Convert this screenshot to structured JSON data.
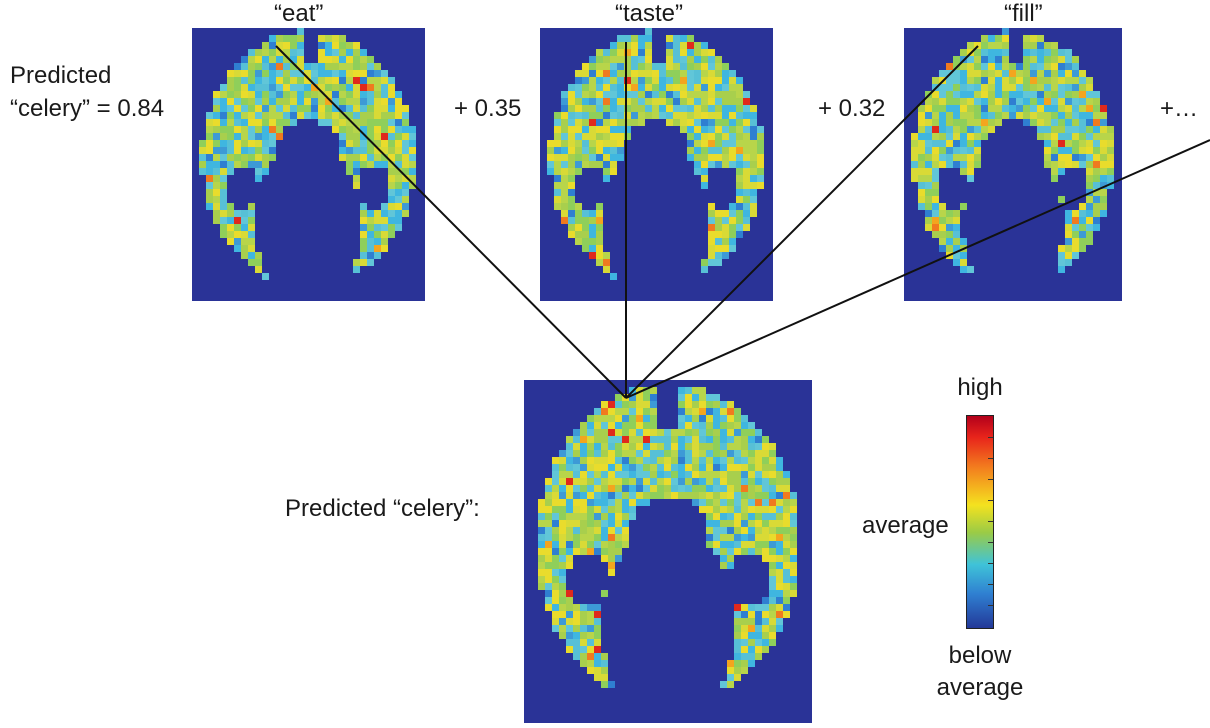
{
  "panels": {
    "eat": "“eat”",
    "taste": "“taste”",
    "fill": "“fill”"
  },
  "equation": {
    "predicted": "Predicted",
    "celery_coef": "“celery” = 0.84",
    "plus_taste": "+ 0.35",
    "plus_fill": "+ 0.32",
    "plus_more": "+…"
  },
  "result_label": "Predicted “celery”:",
  "colorbar": {
    "high": "high",
    "average": "average",
    "below_line1": "below",
    "below_line2": "average",
    "colors": [
      "#b3001b",
      "#e8241b",
      "#f3821e",
      "#f4e21f",
      "#9acb46",
      "#3fc3d8",
      "#2f7fd1",
      "#233898"
    ]
  },
  "colors": {
    "background_blue": "#2a3397",
    "brain_cyan": "#4cc3e0",
    "brain_green": "#9ccc48",
    "brain_yellow": "#e6df2c",
    "hot_red": "#e0291c"
  }
}
